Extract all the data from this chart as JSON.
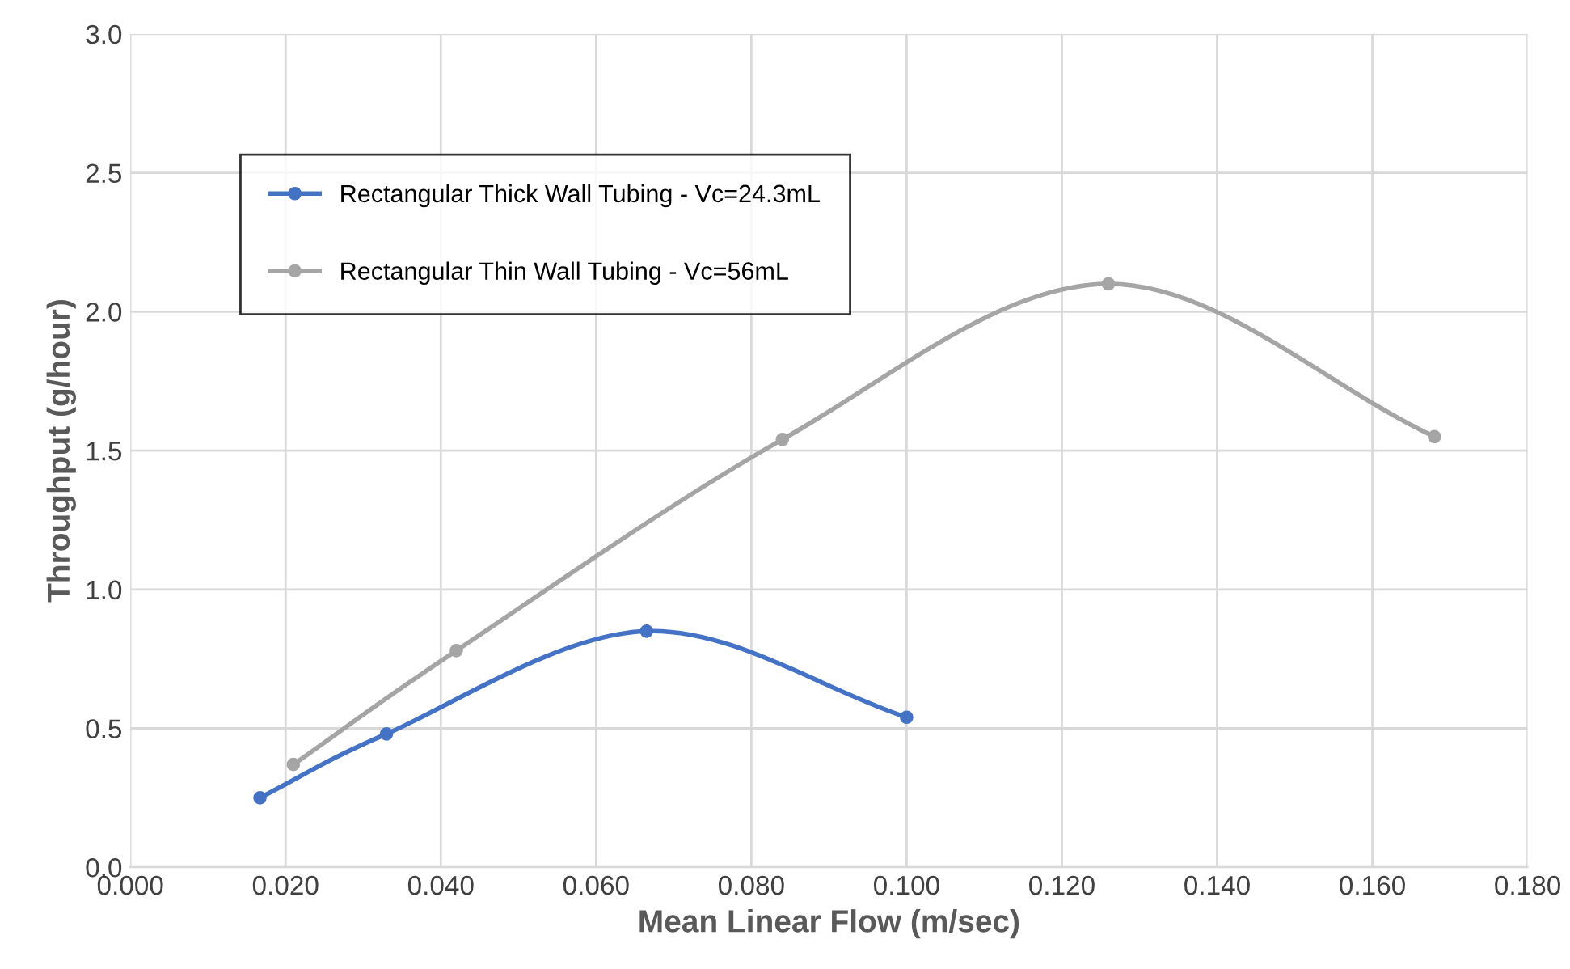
{
  "chart_data": {
    "type": "line",
    "xlabel": "Mean Linear Flow (m/sec)",
    "ylabel": "Throughput (g/hour)",
    "series": [
      {
        "name": "Rectangular Thick Wall Tubing - Vc=24.3mL",
        "color": "#4472c4",
        "x": [
          0.0167,
          0.033,
          0.0665,
          0.1
        ],
        "values": [
          0.25,
          0.48,
          0.85,
          0.54
        ]
      },
      {
        "name": "Rectangular Thin Wall Tubing - Vc=56mL",
        "color": "#a5a5a5",
        "x": [
          0.021,
          0.042,
          0.084,
          0.126,
          0.168
        ],
        "values": [
          0.37,
          0.78,
          1.54,
          2.1,
          1.55
        ]
      }
    ],
    "xlim": [
      0,
      0.18
    ],
    "xticks": [
      {
        "value": 0,
        "label": "0.000"
      },
      {
        "value": 0.02,
        "label": "0.020"
      },
      {
        "value": 0.04,
        "label": "0.040"
      },
      {
        "value": 0.06,
        "label": "0.060"
      },
      {
        "value": 0.08,
        "label": "0.080"
      },
      {
        "value": 0.1,
        "label": "0.100"
      },
      {
        "value": 0.12,
        "label": "0.120"
      },
      {
        "value": 0.14,
        "label": "0.140"
      },
      {
        "value": 0.16,
        "label": "0.160"
      },
      {
        "value": 0.18,
        "label": "0.180"
      }
    ],
    "ylim": [
      0,
      3
    ],
    "yticks": [
      {
        "value": 0,
        "label": "0.0"
      },
      {
        "value": 0.5,
        "label": "0.5"
      },
      {
        "value": 1,
        "label": "1.0"
      },
      {
        "value": 1.5,
        "label": "1.5"
      },
      {
        "value": 2,
        "label": "2.0"
      },
      {
        "value": 2.5,
        "label": "2.5"
      },
      {
        "value": 3,
        "label": "3.0"
      }
    ],
    "grid": true,
    "legend": "top left",
    "marker": "circle",
    "line_style": "solid"
  }
}
